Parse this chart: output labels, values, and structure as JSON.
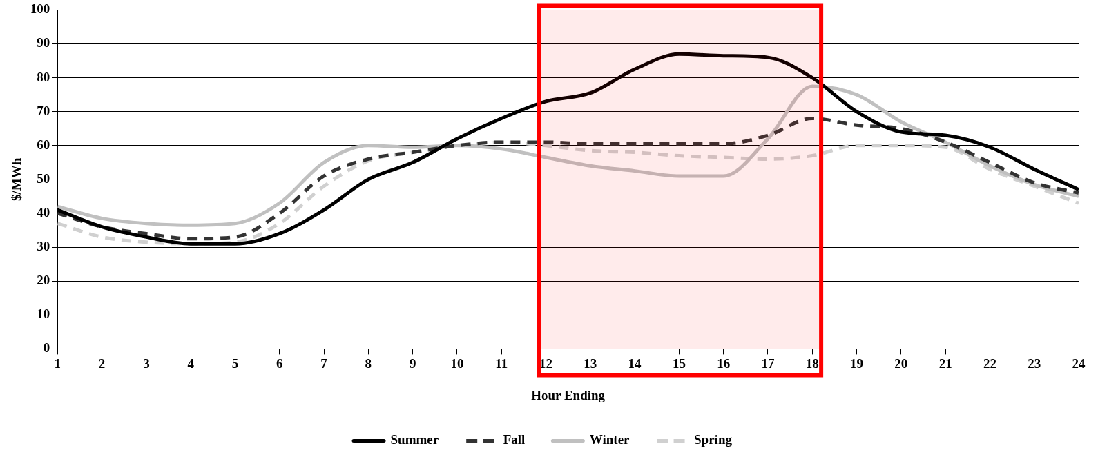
{
  "chart_data": {
    "type": "line",
    "xlabel": "Hour Ending",
    "ylabel": "$/MWh",
    "x": [
      1,
      2,
      3,
      4,
      5,
      6,
      7,
      8,
      9,
      10,
      11,
      12,
      13,
      14,
      15,
      16,
      17,
      18,
      19,
      20,
      21,
      22,
      23,
      24
    ],
    "xlim": [
      1,
      24
    ],
    "xticks": [
      1,
      2,
      3,
      4,
      5,
      6,
      7,
      8,
      9,
      10,
      11,
      12,
      13,
      14,
      15,
      16,
      17,
      18,
      19,
      20,
      21,
      22,
      23,
      24
    ],
    "ylim": [
      0,
      100
    ],
    "yticks": [
      0,
      10,
      20,
      30,
      40,
      50,
      60,
      70,
      80,
      90,
      100
    ],
    "grid": "y",
    "legend": "bottom",
    "marker": "none",
    "bands": [
      {
        "axis": "x",
        "from": 11.85,
        "to": 18.2,
        "color": "#ff0000"
      }
    ],
    "series": [
      {
        "name": "Summer",
        "color": "#000000",
        "line_style": "solid",
        "values": [
          41,
          36,
          33,
          31,
          31,
          34,
          41,
          50,
          55,
          62,
          68,
          73,
          75.5,
          82.5,
          87,
          86.5,
          86,
          80,
          70,
          64,
          63,
          59.5,
          53,
          47
        ]
      },
      {
        "name": "Fall",
        "color": "#333333",
        "line_style": "dashed",
        "values": [
          40,
          36,
          34,
          32.5,
          33,
          40,
          51,
          56,
          58,
          60,
          61,
          61,
          60.5,
          60.5,
          60.5,
          60.5,
          63,
          68,
          66,
          65,
          61,
          55,
          49,
          46
        ]
      },
      {
        "name": "Winter",
        "color": "#c0c0c0",
        "line_style": "solid",
        "values": [
          42,
          38.5,
          37,
          36.5,
          37,
          43,
          55,
          60,
          59.5,
          60,
          59,
          56.5,
          54,
          52.5,
          51,
          51,
          62,
          77.5,
          75,
          67,
          61,
          54,
          48.5,
          45
        ]
      },
      {
        "name": "Spring",
        "color": "#d0d0d0",
        "line_style": "dashed",
        "values": [
          37,
          33,
          31.5,
          31,
          31.5,
          37,
          48,
          55.5,
          58,
          60,
          61,
          60,
          58.5,
          58,
          57,
          56.5,
          56,
          57,
          60,
          60,
          59.5,
          53,
          48,
          43
        ]
      }
    ]
  }
}
